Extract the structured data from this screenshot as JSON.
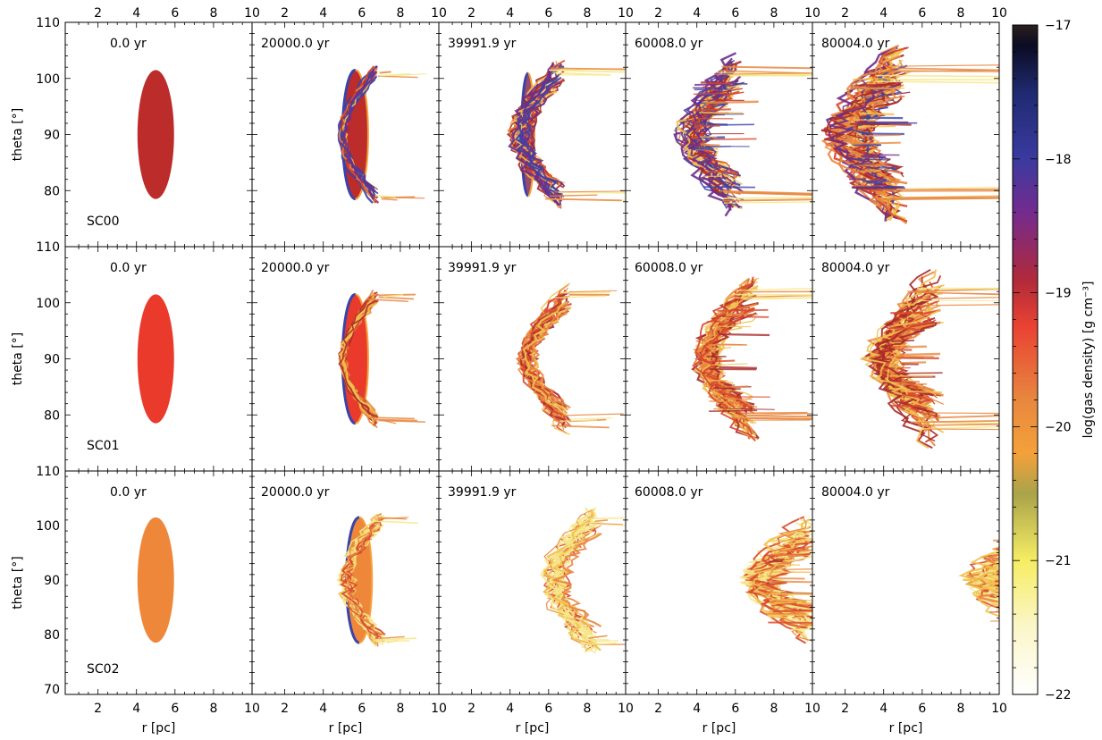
{
  "chart_data": {
    "type": "heatmap",
    "description_units": {
      "x": "r [pc]",
      "y": "theta [°]",
      "color": "log(gas density) [g cm⁻³]"
    },
    "xlabel": "r [pc]",
    "ylabel": "theta [°]",
    "xlim": [
      0.3,
      10
    ],
    "ylim_top_rows": [
      70,
      110
    ],
    "ylim_bottom_row": [
      69,
      110
    ],
    "x_ticks": [
      2,
      4,
      6,
      8,
      10
    ],
    "x_tick_labels": [
      "2",
      "4",
      "6",
      "8",
      "10"
    ],
    "y_ticks_rows": [
      80,
      90,
      100,
      110
    ],
    "y_tick_labels_rows": [
      "80",
      "90",
      "100",
      "110"
    ],
    "y_ticks_bottom": [
      70,
      80,
      90,
      100,
      110
    ],
    "y_tick_labels_bottom": [
      "70",
      "80",
      "90",
      "100",
      "110"
    ],
    "times": [
      "0.0 yr",
      "20000.0 yr",
      "39991.9 yr",
      "60008.0 yr",
      "80004.0 yr"
    ],
    "rows": [
      {
        "label": "SC00",
        "cloud_log_density": -19.0,
        "cloud_color": "#bb2c2a"
      },
      {
        "label": "SC01",
        "cloud_log_density": -19.3,
        "cloud_color": "#ea3a2c"
      },
      {
        "label": "SC02",
        "cloud_log_density": -19.8,
        "cloud_color": "#ef873b"
      }
    ],
    "initial_cloud": {
      "r_center": 5.0,
      "r_halfwidth": 0.95,
      "theta_center": 90.0,
      "theta_halfwidth": 11.5
    },
    "colorbar": {
      "label": "log(gas density) [g cm⁻³]",
      "min": -22,
      "max": -17,
      "ticks": [
        -22,
        -21,
        -20,
        -19,
        -18,
        -17
      ],
      "tick_labels": [
        "−22",
        "−21",
        "−20",
        "−19",
        "−18",
        "−17"
      ],
      "colormap": [
        "#ffffff",
        "#fbf6c9",
        "#f6ed63",
        "#a9a34a",
        "#f4a13a",
        "#e8873f",
        "#e94232",
        "#b02a3a",
        "#742b8e",
        "#3a3aa0",
        "#1f2a70",
        "#0b0b22",
        "#2b2020"
      ]
    }
  }
}
